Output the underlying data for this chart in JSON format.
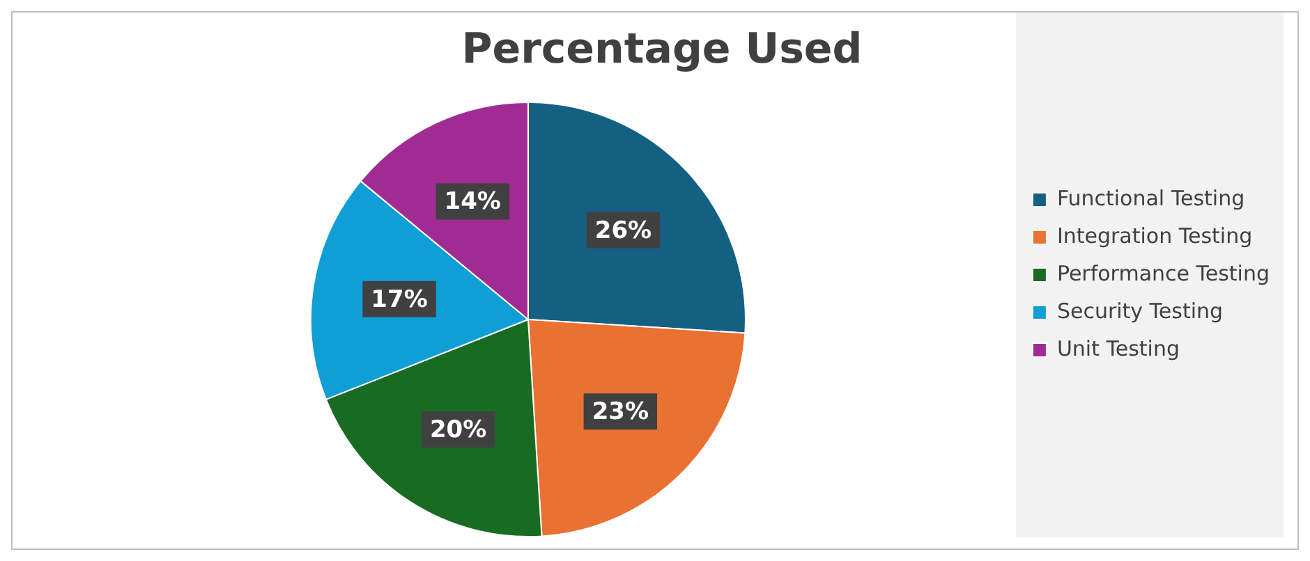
{
  "chart_data": {
    "type": "pie",
    "title": "Percentage Used",
    "categories": [
      "Functional Testing",
      "Integration Testing",
      "Performance Testing",
      "Security Testing",
      "Unit Testing"
    ],
    "values": [
      26,
      23,
      20,
      17,
      14
    ],
    "colors": [
      "#156082",
      "#e97132",
      "#196b24",
      "#0f9ed5",
      "#a02b93"
    ],
    "value_labels": [
      "26%",
      "23%",
      "20%",
      "17%",
      "14%"
    ],
    "legend": "right"
  }
}
